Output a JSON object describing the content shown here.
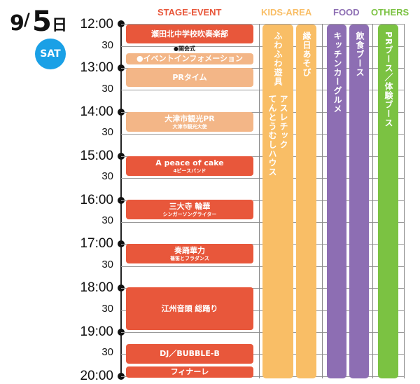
{
  "date": {
    "month": "9",
    "slash": "/",
    "day": "5",
    "day_kanji": "日",
    "dow": "SAT"
  },
  "headers": {
    "stage": "STAGE-EVENT",
    "kids": "KIDS-AREA",
    "food": "FOOD",
    "others": "OTHERS"
  },
  "colors": {
    "stage": "#e8573b",
    "stage_light": "#f3b687",
    "kids": "#f9be66",
    "food": "#8d6eb3",
    "others": "#7bc242",
    "dow_badge": "#1aa0e6"
  },
  "times": [
    "12:00",
    "30",
    "13:00",
    "30",
    "14:00",
    "30",
    "15:00",
    "30",
    "16:00",
    "30",
    "17:00",
    "30",
    "18:00",
    "30",
    "19:00",
    "30",
    "20:00"
  ],
  "stage_events": [
    {
      "title": "瀬田北中学校吹奏楽部",
      "sub": ""
    },
    {
      "title": "●イベントインフォメーション",
      "sub": ""
    },
    {
      "title": "PRタイム",
      "sub": ""
    },
    {
      "title": "大津市観光PR",
      "sub": "大津市観光大使"
    },
    {
      "title": "A peace of cake",
      "sub": "4ピースバンド"
    },
    {
      "title": "三大寺 輪華",
      "sub": "シンガーソングライター"
    },
    {
      "title": "奏踊華力",
      "sub": "篠笛とフラダンス"
    },
    {
      "title": "江州音頭 総踊り",
      "sub": ""
    },
    {
      "title": "DJ／BUBBLE-B",
      "sub": ""
    },
    {
      "title": "フィナーレ",
      "sub": ""
    }
  ],
  "opening_note": "●開会式",
  "kids": [
    {
      "label1": "ふわふわ遊具",
      "label2": "アスレチック",
      "label3": "てんとうむしハウス"
    },
    {
      "label1": "縁日あそび"
    }
  ],
  "food": [
    {
      "label": "キッチンカーグルメ"
    },
    {
      "label": "飲食ブース"
    }
  ],
  "others": [
    {
      "label": "PRブース／体験ブース"
    }
  ]
}
